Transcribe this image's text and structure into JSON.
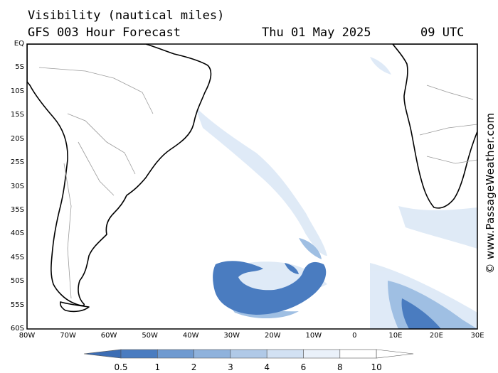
{
  "header": {
    "variable": "Visibility (nautical miles)",
    "model": "GFS 003 Hour Forecast",
    "date": "Thu 01 May 2025",
    "time": "09 UTC"
  },
  "credit": "© www.PassageWeather.com",
  "map": {
    "lon_range": [
      -80,
      30
    ],
    "lat_range": [
      -60,
      0
    ],
    "lat_labels": [
      "EQ",
      "5S",
      "10S",
      "15S",
      "20S",
      "25S",
      "30S",
      "35S",
      "40S",
      "45S",
      "50S",
      "55S",
      "60S"
    ],
    "lon_labels": [
      "80W",
      "70W",
      "60W",
      "50W",
      "40W",
      "30W",
      "20W",
      "10W",
      "0",
      "10E",
      "20E",
      "30E"
    ]
  },
  "colorbar": {
    "labels": [
      "0.5",
      "1",
      "2",
      "3",
      "4",
      "6",
      "8",
      "10"
    ],
    "colors": [
      "#3c6db4",
      "#4a7cc0",
      "#6f9ad0",
      "#8fb2dc",
      "#b0c9e7",
      "#d2e1f3",
      "#eaf1fa",
      "#ffffff"
    ]
  }
}
